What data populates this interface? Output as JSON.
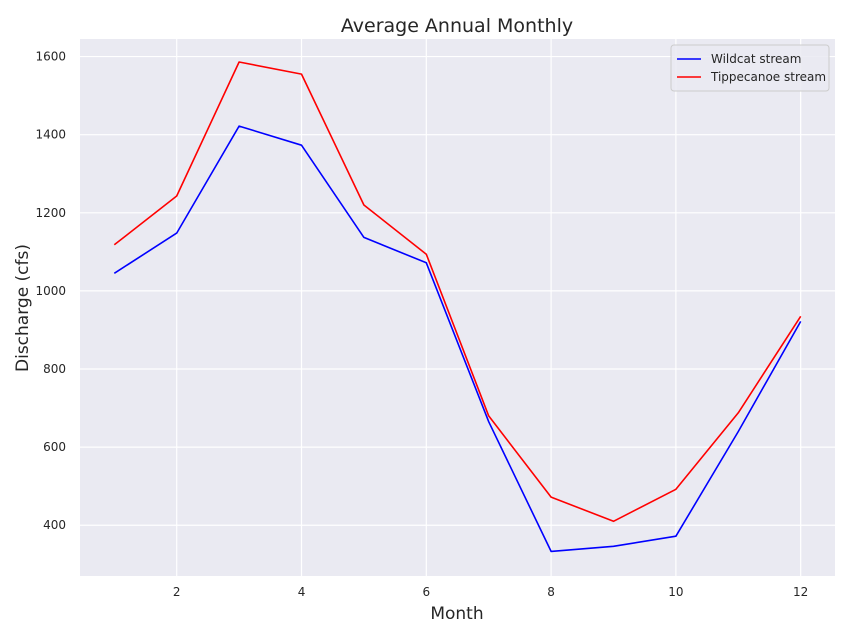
{
  "chart_data": {
    "type": "line",
    "title": "Average Annual Monthly",
    "xlabel": "Month",
    "ylabel": "Discharge (cfs)",
    "x": [
      1,
      2,
      3,
      4,
      5,
      6,
      7,
      8,
      9,
      10,
      11,
      12
    ],
    "xlim": [
      0.45,
      12.55
    ],
    "ylim": [
      270,
      1645
    ],
    "xticks": [
      2,
      4,
      6,
      8,
      10,
      12
    ],
    "yticks": [
      400,
      600,
      800,
      1000,
      1200,
      1400,
      1600
    ],
    "grid": true,
    "legend_position": "top-right",
    "background": "#eaeaf2",
    "series": [
      {
        "name": "Wildcat stream",
        "color": "#0000ff",
        "values": [
          1045,
          1148,
          1422,
          1373,
          1137,
          1072,
          665,
          333,
          346,
          372,
          640,
          922
        ]
      },
      {
        "name": "Tippecanoe stream",
        "color": "#ff0000",
        "values": [
          1118,
          1243,
          1586,
          1555,
          1220,
          1094,
          680,
          472,
          410,
          492,
          688,
          935
        ]
      }
    ]
  }
}
